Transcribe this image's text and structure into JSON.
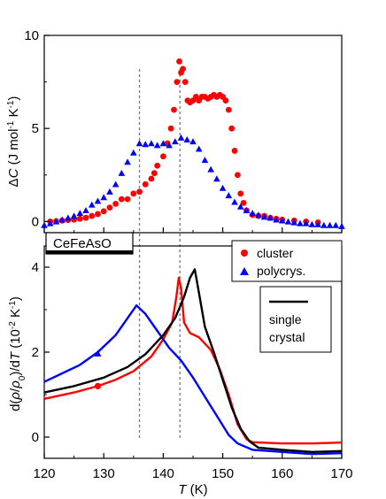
{
  "chart_data": [
    {
      "type": "scatter",
      "ylabel_parts": [
        "Δ",
        "C",
        " (J mol",
        "-1",
        " K",
        "-1",
        ")"
      ],
      "xlim": [
        120,
        170
      ],
      "ylim": [
        -0.6,
        10
      ],
      "yticks": [
        0,
        5,
        10
      ],
      "vlines": [
        136,
        142.8
      ],
      "series": [
        {
          "name": "cluster",
          "color": "#ff0000",
          "marker": "circle",
          "points": [
            [
              121,
              0.0
            ],
            [
              122,
              0.02
            ],
            [
              123,
              0.05
            ],
            [
              124,
              0.08
            ],
            [
              125,
              0.1
            ],
            [
              126,
              0.15
            ],
            [
              127,
              0.2
            ],
            [
              128,
              0.3
            ],
            [
              129,
              0.4
            ],
            [
              130,
              0.55
            ],
            [
              131,
              0.75
            ],
            [
              132,
              0.95
            ],
            [
              133,
              1.2
            ],
            [
              134,
              1.2
            ],
            [
              135,
              1.5
            ],
            [
              136,
              1.6
            ],
            [
              137,
              2.0
            ],
            [
              138,
              2.3
            ],
            [
              138.5,
              2.6
            ],
            [
              139,
              3.0
            ],
            [
              140,
              3.5
            ],
            [
              140.7,
              4.2
            ],
            [
              141.3,
              5.0
            ],
            [
              141.8,
              6.0
            ],
            [
              142.3,
              7.5
            ],
            [
              142.7,
              8.6
            ],
            [
              143,
              8.0
            ],
            [
              143.3,
              8.2
            ],
            [
              143.7,
              7.5
            ],
            [
              144.1,
              6.5
            ],
            [
              144.5,
              6.4
            ],
            [
              145,
              6.5
            ],
            [
              145.5,
              6.7
            ],
            [
              146,
              6.5
            ],
            [
              146.5,
              6.7
            ],
            [
              147,
              6.7
            ],
            [
              147.5,
              6.6
            ],
            [
              148,
              6.7
            ],
            [
              148.5,
              6.8
            ],
            [
              149,
              6.7
            ],
            [
              149.5,
              6.8
            ],
            [
              150,
              6.7
            ],
            [
              150.5,
              6.5
            ],
            [
              151,
              6.0
            ],
            [
              151.5,
              5.0
            ],
            [
              152,
              3.8
            ],
            [
              152.5,
              2.5
            ],
            [
              153,
              1.5
            ],
            [
              153.5,
              1.0
            ],
            [
              154,
              0.6
            ],
            [
              155,
              0.35
            ],
            [
              156,
              0.3
            ],
            [
              157,
              0.3
            ],
            [
              158,
              0.2
            ],
            [
              159,
              0.15
            ],
            [
              160,
              0.1
            ],
            [
              162,
              0.05
            ],
            [
              164,
              0.0
            ],
            [
              166,
              -0.05
            ]
          ]
        },
        {
          "name": "polycrys.",
          "color": "#0000ff",
          "marker": "triangle",
          "points": [
            [
              120,
              -0.2
            ],
            [
              121,
              -0.1
            ],
            [
              122,
              0.0
            ],
            [
              123,
              0.1
            ],
            [
              124,
              0.2
            ],
            [
              125,
              0.3
            ],
            [
              126,
              0.45
            ],
            [
              127,
              0.6
            ],
            [
              128,
              0.9
            ],
            [
              129,
              1.1
            ],
            [
              130,
              1.3
            ],
            [
              131,
              1.6
            ],
            [
              132,
              2.0
            ],
            [
              133,
              2.6
            ],
            [
              134,
              3.2
            ],
            [
              135,
              3.7
            ],
            [
              136,
              4.2
            ],
            [
              137,
              4.15
            ],
            [
              138,
              4.2
            ],
            [
              139,
              4.1
            ],
            [
              140,
              4.2
            ],
            [
              141,
              4.1
            ],
            [
              142,
              4.3
            ],
            [
              143,
              4.5
            ],
            [
              144,
              4.4
            ],
            [
              145,
              4.3
            ],
            [
              146,
              3.9
            ],
            [
              147,
              3.3
            ],
            [
              148,
              2.8
            ],
            [
              149,
              2.3
            ],
            [
              150,
              1.8
            ],
            [
              151,
              1.4
            ],
            [
              152,
              1.05
            ],
            [
              153,
              0.8
            ],
            [
              154,
              0.6
            ],
            [
              155,
              0.45
            ],
            [
              156,
              0.35
            ],
            [
              157,
              0.25
            ],
            [
              158,
              0.2
            ],
            [
              159,
              0.1
            ],
            [
              160,
              0.05
            ],
            [
              161,
              0.0
            ],
            [
              162,
              -0.05
            ],
            [
              163,
              -0.1
            ],
            [
              164,
              -0.1
            ],
            [
              165,
              -0.15
            ],
            [
              166,
              -0.15
            ],
            [
              167,
              -0.2
            ],
            [
              168,
              -0.2
            ],
            [
              169,
              -0.2
            ],
            [
              170,
              -0.25
            ]
          ]
        }
      ]
    },
    {
      "type": "line",
      "ylabel_parts": [
        "d(",
        "ρ",
        "/",
        "ρ",
        "0",
        ")/d",
        "T",
        "  (10",
        "-2",
        " K",
        "-1",
        ")"
      ],
      "xlabel_parts": [
        "T",
        " (K)"
      ],
      "xlim": [
        120,
        170
      ],
      "ylim": [
        -0.5,
        4.5
      ],
      "xticks": [
        120,
        130,
        140,
        150,
        160,
        170
      ],
      "yticks": [
        0,
        2,
        4
      ],
      "vlines": [
        136,
        142.8
      ],
      "sample_label": "CeFeAsO",
      "series": [
        {
          "name": "cluster",
          "color": "#ff0000",
          "marker": "circle",
          "marker_at": [
            129,
            1.2
          ],
          "points": [
            [
              120,
              0.9
            ],
            [
              125,
              1.05
            ],
            [
              129,
              1.2
            ],
            [
              132,
              1.35
            ],
            [
              135,
              1.55
            ],
            [
              138,
              1.9
            ],
            [
              140,
              2.3
            ],
            [
              141.5,
              2.7
            ],
            [
              142.2,
              3.3
            ],
            [
              142.6,
              3.75
            ],
            [
              143,
              3.5
            ],
            [
              143.5,
              2.7
            ],
            [
              144.5,
              2.45
            ],
            [
              146,
              2.35
            ],
            [
              148,
              2.05
            ],
            [
              149.5,
              1.6
            ],
            [
              151,
              1.0
            ],
            [
              152.5,
              0.3
            ],
            [
              154,
              -0.05
            ],
            [
              155,
              -0.12
            ],
            [
              160,
              -0.15
            ],
            [
              165,
              -0.15
            ],
            [
              170,
              -0.13
            ]
          ]
        },
        {
          "name": "polycrys.",
          "color": "#0000ff",
          "marker": "triangle",
          "marker_at": [
            129,
            1.97
          ],
          "points": [
            [
              120,
              1.3
            ],
            [
              123,
              1.5
            ],
            [
              126,
              1.7
            ],
            [
              129,
              2.0
            ],
            [
              132,
              2.4
            ],
            [
              134,
              2.8
            ],
            [
              135.5,
              3.1
            ],
            [
              137,
              2.9
            ],
            [
              139,
              2.5
            ],
            [
              141,
              2.1
            ],
            [
              143,
              1.8
            ],
            [
              145,
              1.4
            ],
            [
              147,
              0.95
            ],
            [
              149,
              0.5
            ],
            [
              151,
              0.05
            ],
            [
              152.5,
              -0.15
            ],
            [
              155,
              -0.3
            ],
            [
              160,
              -0.35
            ],
            [
              165,
              -0.4
            ],
            [
              170,
              -0.38
            ]
          ]
        },
        {
          "name": "single crystal",
          "name_lines": [
            "single",
            "crystal"
          ],
          "color": "#000000",
          "marker": "none",
          "points": [
            [
              120,
              1.05
            ],
            [
              125,
              1.2
            ],
            [
              130,
              1.4
            ],
            [
              134,
              1.65
            ],
            [
              137,
              1.95
            ],
            [
              140,
              2.4
            ],
            [
              142,
              2.8
            ],
            [
              143.5,
              3.3
            ],
            [
              144.5,
              3.75
            ],
            [
              145.3,
              3.95
            ],
            [
              146,
              3.4
            ],
            [
              147,
              2.6
            ],
            [
              148.5,
              2.0
            ],
            [
              150,
              1.35
            ],
            [
              151.5,
              0.7
            ],
            [
              153,
              0.2
            ],
            [
              154.5,
              -0.1
            ],
            [
              156,
              -0.25
            ],
            [
              160,
              -0.3
            ],
            [
              165,
              -0.35
            ],
            [
              170,
              -0.33
            ]
          ]
        }
      ]
    }
  ]
}
